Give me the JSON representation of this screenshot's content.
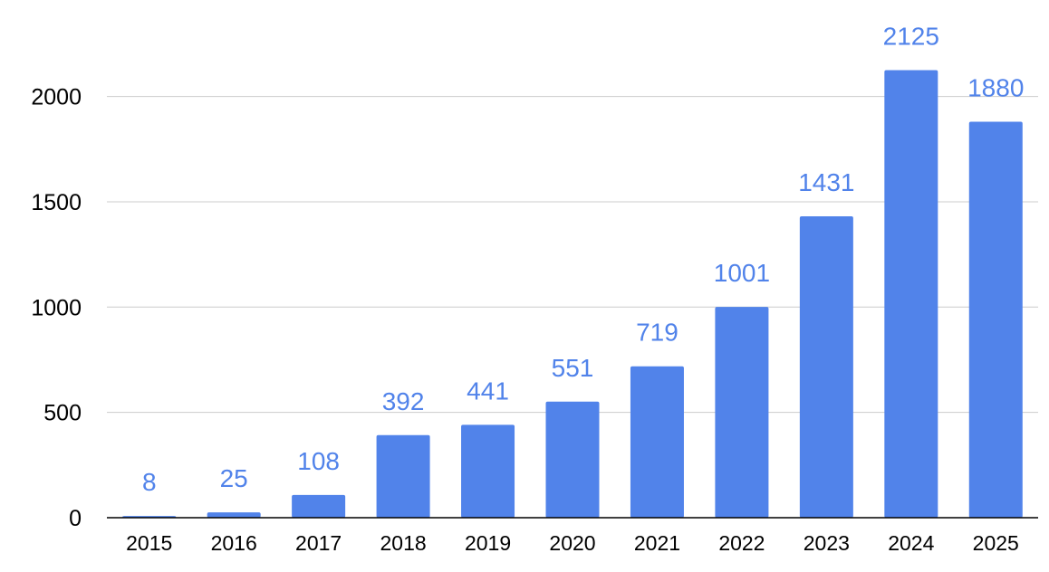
{
  "chart_data": {
    "type": "bar",
    "title": "",
    "xlabel": "",
    "ylabel": "",
    "categories": [
      "2015",
      "2016",
      "2017",
      "2018",
      "2019",
      "2020",
      "2021",
      "2022",
      "2023",
      "2024",
      "2025"
    ],
    "values": [
      8,
      25,
      108,
      392,
      441,
      551,
      719,
      1001,
      1431,
      2125,
      1880
    ],
    "data_labels": [
      "8",
      "25",
      "108",
      "392",
      "441",
      "551",
      "719",
      "1001",
      "1431",
      "2125",
      "1880"
    ],
    "y_ticks": [
      0,
      500,
      1000,
      1500,
      2000
    ],
    "y_tick_labels": [
      "0",
      "500",
      "1000",
      "1500",
      "2000"
    ],
    "ylim": [
      0,
      2300
    ],
    "grid": true,
    "legend": "none",
    "colors": {
      "bar": "#5183EA",
      "data_label": "#5183EA",
      "grid": "#CCCCCC",
      "axis": "#000000"
    }
  }
}
